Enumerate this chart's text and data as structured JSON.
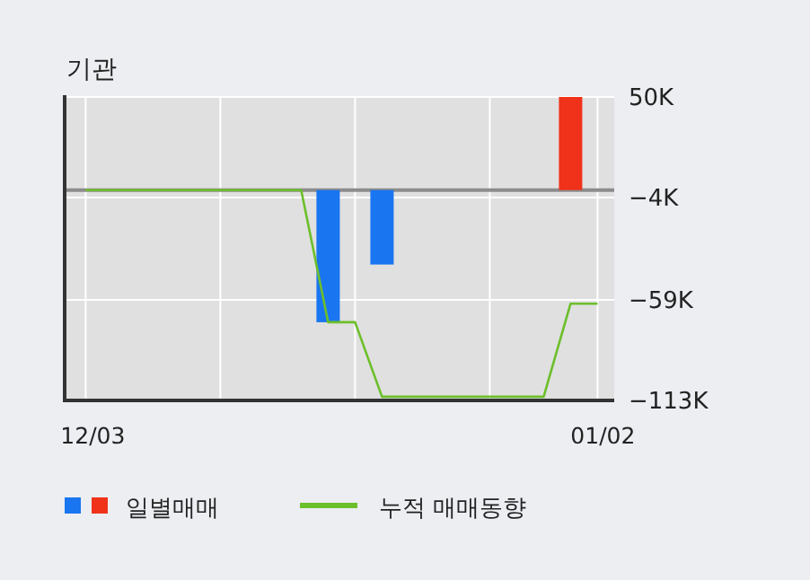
{
  "chart_data": {
    "type": "bar",
    "title": "기관",
    "categories": [
      "12/03",
      null,
      null,
      null,
      null,
      null,
      null,
      null,
      null,
      null,
      null,
      null,
      null,
      null,
      null,
      null,
      null,
      null,
      null,
      "01/02"
    ],
    "series": [
      {
        "name": "일별매매",
        "values": [
          null,
          null,
          null,
          null,
          null,
          null,
          null,
          null,
          null,
          -71000,
          null,
          -40000,
          null,
          null,
          null,
          null,
          null,
          null,
          50000,
          null
        ],
        "colors": [
          "#1a75f0",
          "#1a75f0",
          "#1a75f0",
          "#1a75f0",
          "#1a75f0",
          "#1a75f0",
          "#1a75f0",
          "#1a75f0",
          "#1a75f0",
          "#1a75f0",
          "#1a75f0",
          "#1a75f0",
          "#1a75f0",
          "#1a75f0",
          "#1a75f0",
          "#1a75f0",
          "#1a75f0",
          "#1a75f0",
          "#f0321a",
          "#1a75f0"
        ]
      },
      {
        "name": "누적 매매동향",
        "type": "line",
        "color": "#6cbf2a",
        "values": [
          0,
          0,
          0,
          0,
          0,
          0,
          0,
          0,
          0,
          -71000,
          -71000,
          -111000,
          -111000,
          -111000,
          -111000,
          -111000,
          -111000,
          -111000,
          -61000,
          -61000
        ]
      }
    ],
    "ylim": [
      -113000,
      50000
    ],
    "yticks": [
      {
        "value": 50000,
        "label": "50K"
      },
      {
        "value": -4000,
        "label": "−4K"
      },
      {
        "value": -59000,
        "label": "−59K"
      },
      {
        "value": -113000,
        "label": "−113K"
      }
    ],
    "ref_lines": [
      {
        "axis": "y",
        "value": 0,
        "color": "#8c8c8c"
      }
    ],
    "grid": true,
    "legend": "bottom",
    "marker": "none",
    "line_style": "solid"
  }
}
